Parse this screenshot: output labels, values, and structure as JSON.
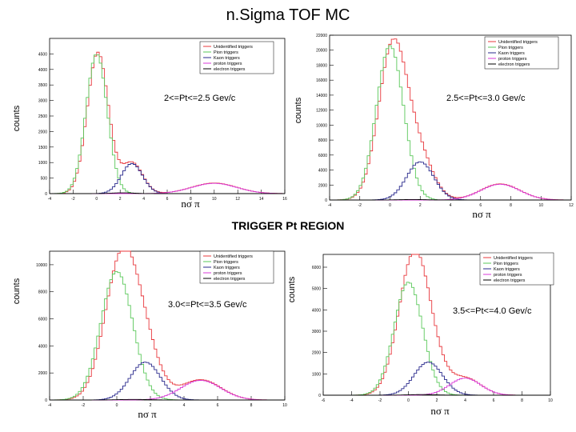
{
  "title": "n.Sigma TOF MC",
  "section_label": "TRIGGER Pt REGION",
  "colors": {
    "unidentified": "#e8383d",
    "pion": "#5ac85a",
    "kaon": "#28288c",
    "proton": "#d838d8",
    "electron": "#000000"
  },
  "chart_data": [
    {
      "type": "line",
      "annotation": "2<=Pt<=2.5 Gev/c",
      "xlabel": "nσ π",
      "ylabel": "counts",
      "xlim": [
        -4,
        16
      ],
      "ylim": [
        0,
        5000
      ],
      "xticks": [
        -4,
        -2,
        0,
        2,
        4,
        6,
        8,
        10,
        12,
        14,
        16
      ],
      "yticks": [
        0,
        500,
        1000,
        1500,
        2000,
        2500,
        3000,
        3500,
        4000,
        4500
      ],
      "legend": [
        "Unidentified triggers",
        "Pion triggers",
        "Kaon triggers",
        "proton triggers",
        "electron triggers"
      ],
      "series": [
        {
          "name": "Unidentified triggers",
          "key": "unidentified",
          "mu": 0.1,
          "sigma": 0.9,
          "amp": 4550,
          "extra": [
            [
              3.0,
              0.9,
              1000
            ],
            [
              10.0,
              1.9,
              340
            ]
          ]
        },
        {
          "name": "Pion triggers",
          "key": "pion",
          "mu": 0.0,
          "sigma": 0.9,
          "amp": 4500
        },
        {
          "name": "Kaon triggers",
          "key": "kaon",
          "mu": 3.0,
          "sigma": 0.9,
          "amp": 970
        },
        {
          "name": "proton triggers",
          "key": "proton",
          "mu": 10.0,
          "sigma": 1.9,
          "amp": 330
        },
        {
          "name": "electron triggers",
          "key": "electron",
          "mu": 2.2,
          "sigma": 0.9,
          "amp": 25
        }
      ]
    },
    {
      "type": "line",
      "annotation": "2.5<=Pt<=3.0 Gev/c",
      "xlabel": "nσ π",
      "ylabel": "counts",
      "xlim": [
        -4,
        12
      ],
      "ylim": [
        0,
        22000
      ],
      "xticks": [
        -4,
        -2,
        0,
        2,
        4,
        6,
        8,
        10,
        12
      ],
      "yticks": [
        0,
        2000,
        4000,
        6000,
        8000,
        10000,
        12000,
        14000,
        16000,
        18000,
        20000,
        22000
      ],
      "legend": [
        "Unidentified triggers",
        "Pion triggers",
        "Kaon triggers",
        "proton triggers",
        "electron triggers"
      ],
      "series": [
        {
          "name": "Unidentified triggers",
          "key": "unidentified",
          "mu": 0.2,
          "sigma": 0.95,
          "amp": 20800,
          "extra": [
            [
              2.0,
              0.9,
              5200
            ],
            [
              7.3,
              1.3,
              2150
            ]
          ]
        },
        {
          "name": "Pion triggers",
          "key": "pion",
          "mu": 0.0,
          "sigma": 0.9,
          "amp": 20600
        },
        {
          "name": "Kaon triggers",
          "key": "kaon",
          "mu": 2.0,
          "sigma": 0.9,
          "amp": 5100
        },
        {
          "name": "proton triggers",
          "key": "proton",
          "mu": 7.3,
          "sigma": 1.3,
          "amp": 2100
        },
        {
          "name": "electron triggers",
          "key": "electron",
          "mu": 1.5,
          "sigma": 0.9,
          "amp": 60
        }
      ]
    },
    {
      "type": "line",
      "annotation": "3.0<=Pt<=3.5 Gev/c",
      "xlabel": "nσ π",
      "ylabel": "counts",
      "xlim": [
        -4,
        10
      ],
      "ylim": [
        0,
        11000
      ],
      "xticks": [
        -4,
        -2,
        0,
        2,
        4,
        6,
        8,
        10
      ],
      "yticks": [
        0,
        2000,
        4000,
        6000,
        8000,
        10000
      ],
      "legend": [
        "Unidentified triggers",
        "Pion triggers",
        "Kaon triggers",
        "proton triggers",
        "electron triggers"
      ],
      "series": [
        {
          "name": "Unidentified triggers",
          "key": "unidentified",
          "mu": 0.3,
          "sigma": 1.0,
          "amp": 10400,
          "extra": [
            [
              1.7,
              0.9,
              2800
            ],
            [
              5.0,
              1.2,
              1500
            ]
          ]
        },
        {
          "name": "Pion triggers",
          "key": "pion",
          "mu": 0.0,
          "sigma": 0.95,
          "amp": 9500
        },
        {
          "name": "Kaon triggers",
          "key": "kaon",
          "mu": 1.7,
          "sigma": 0.9,
          "amp": 2800
        },
        {
          "name": "proton triggers",
          "key": "proton",
          "mu": 5.0,
          "sigma": 1.2,
          "amp": 1450
        },
        {
          "name": "electron triggers",
          "key": "electron",
          "mu": 1.0,
          "sigma": 0.9,
          "amp": 40
        }
      ]
    },
    {
      "type": "line",
      "annotation": "3.5<=Pt<=4.0 Gev/c",
      "xlabel": "nσ π",
      "ylabel": "counts",
      "xlim": [
        -6,
        10
      ],
      "ylim": [
        0,
        6600
      ],
      "xticks": [
        -6,
        -4,
        -2,
        0,
        2,
        4,
        6,
        8,
        10
      ],
      "yticks": [
        0,
        1000,
        2000,
        3000,
        4000,
        5000,
        6000
      ],
      "legend": [
        "Unidentified triggers",
        "Pion triggers",
        "Kaon triggers",
        "proton triggers",
        "electron triggers"
      ],
      "series": [
        {
          "name": "Unidentified triggers",
          "key": "unidentified",
          "mu": 0.3,
          "sigma": 1.05,
          "amp": 5900,
          "extra": [
            [
              1.4,
              1.0,
              1500
            ],
            [
              4.0,
              1.1,
              800
            ]
          ]
        },
        {
          "name": "Pion triggers",
          "key": "pion",
          "mu": 0.0,
          "sigma": 1.0,
          "amp": 5300
        },
        {
          "name": "Kaon triggers",
          "key": "kaon",
          "mu": 1.4,
          "sigma": 1.0,
          "amp": 1550
        },
        {
          "name": "proton triggers",
          "key": "proton",
          "mu": 4.0,
          "sigma": 1.1,
          "amp": 800
        },
        {
          "name": "electron triggers",
          "key": "electron",
          "mu": 1.0,
          "sigma": 1.0,
          "amp": 30
        }
      ]
    }
  ]
}
